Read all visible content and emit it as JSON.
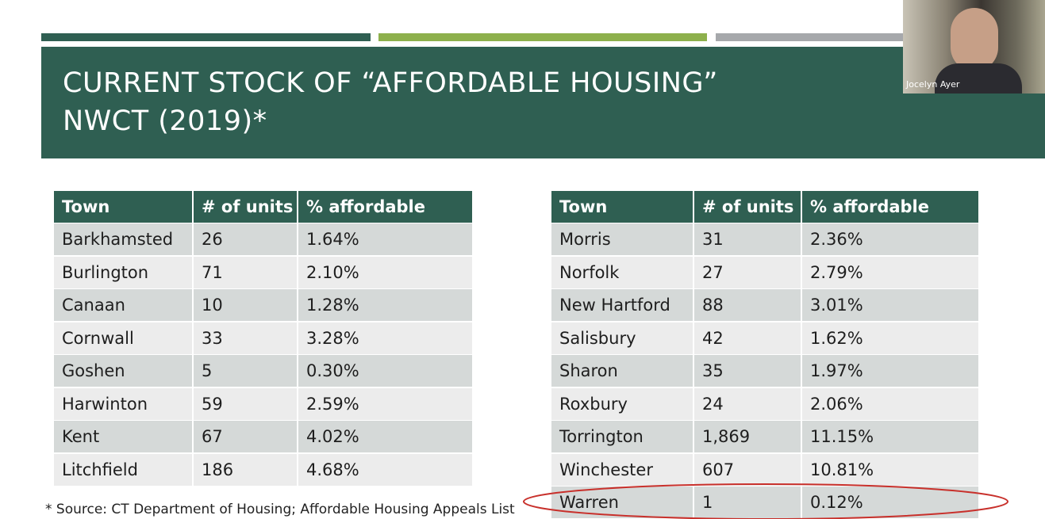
{
  "header": {
    "title_lines": [
      "CURRENT STOCK OF “AFFORDABLE HOUSING”",
      "NWCT (2019)*"
    ]
  },
  "tables": [
    {
      "header": [
        "Town",
        "# of units",
        "% affordable"
      ],
      "rows": [
        [
          "Barkhamsted",
          "26",
          "1.64%"
        ],
        [
          "Burlington",
          "71",
          "2.10%"
        ],
        [
          "Canaan",
          "10",
          "1.28%"
        ],
        [
          "Cornwall",
          "33",
          "3.28%"
        ],
        [
          "Goshen",
          "5",
          "0.30%"
        ],
        [
          "Harwinton",
          "59",
          "2.59%"
        ],
        [
          "Kent",
          "67",
          "4.02%"
        ],
        [
          "Litchfield",
          "186",
          "4.68%"
        ]
      ]
    },
    {
      "header": [
        "Town",
        "# of units",
        "% affordable"
      ],
      "rows": [
        [
          "Morris",
          "31",
          "2.36%"
        ],
        [
          "Norfolk",
          "27",
          "2.79%"
        ],
        [
          "New Hartford",
          "88",
          "3.01%"
        ],
        [
          "Salisbury",
          "42",
          "1.62%"
        ],
        [
          "Sharon",
          "35",
          "1.97%"
        ],
        [
          "Roxbury",
          "24",
          "2.06%"
        ],
        [
          "Torrington",
          "1,869",
          "11.15%"
        ],
        [
          "Winchester",
          "607",
          "10.81%"
        ],
        [
          "Warren",
          "1",
          "0.12%"
        ]
      ]
    }
  ],
  "footnote": "* Source: CT Department of Housing; Affordable Housing Appeals List",
  "video": {
    "participant": "Jocelyn Ayer"
  }
}
